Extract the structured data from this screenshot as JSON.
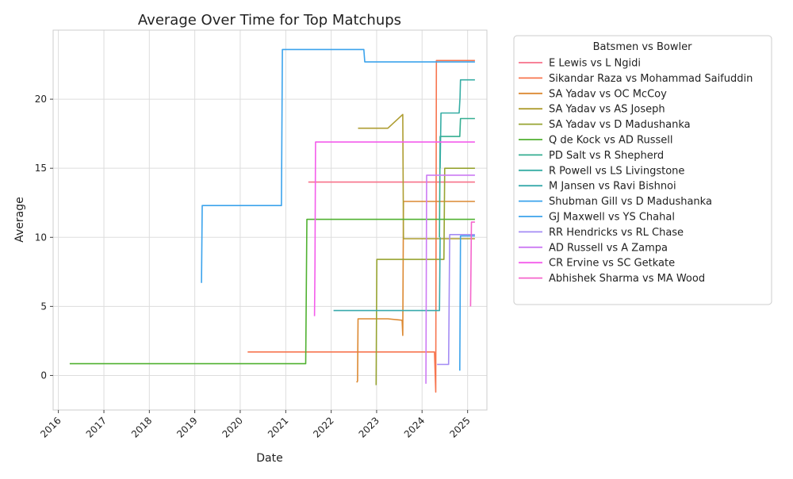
{
  "chart_data": {
    "type": "line",
    "title": "Average Over Time for Top Matchups",
    "xlabel": "Date",
    "ylabel": "Average",
    "xlim": [
      "2015-11-20",
      "2025-06-05"
    ],
    "ylim": [
      -2.5,
      25
    ],
    "x_ticks": [
      "2016",
      "2017",
      "2018",
      "2019",
      "2020",
      "2021",
      "2022",
      "2023",
      "2024",
      "2025"
    ],
    "y_ticks": [
      0,
      5,
      10,
      15,
      20
    ],
    "grid": true,
    "legend_title": "Batsmen vs Bowler",
    "legend_position": "outside-right",
    "series": [
      {
        "name": "E Lewis vs L Ngidi",
        "color": "#f77189",
        "x": [
          "2021-07-01",
          "2025-03-01"
        ],
        "y": [
          14.0,
          14.0
        ]
      },
      {
        "name": "Sikandar Raza vs Mohammad Saifuddin",
        "color": "#f7754f",
        "x": [
          "2020-03-01",
          "2024-04-10",
          "2024-04-20",
          "2024-04-25",
          "2025-03-01"
        ],
        "y": [
          1.7,
          1.7,
          -1.2,
          22.8,
          22.8
        ]
      },
      {
        "name": "SA Yadav vs OC McCoy",
        "color": "#dc8932",
        "x": [
          "2022-07-25",
          "2022-08-01",
          "2022-08-05",
          "2023-04-01",
          "2023-07-25",
          "2023-07-30",
          "2023-08-05",
          "2025-03-01"
        ],
        "y": [
          -0.5,
          -0.4,
          4.1,
          4.1,
          4.0,
          2.9,
          12.6,
          12.6
        ]
      },
      {
        "name": "SA Yadav vs AS Joseph",
        "color": "#ae9d31",
        "x": [
          "2022-08-05",
          "2023-04-01",
          "2023-07-30",
          "2023-08-05",
          "2025-03-01"
        ],
        "y": [
          17.9,
          17.9,
          18.9,
          9.9,
          9.9
        ]
      },
      {
        "name": "SA Yadav vs D Madushanka",
        "color": "#97a431",
        "x": [
          "2022-12-28",
          "2023-01-03",
          "2024-06-25",
          "2024-07-01",
          "2025-03-01"
        ],
        "y": [
          -0.7,
          8.4,
          8.4,
          15.0,
          15.0
        ]
      },
      {
        "name": "Q de Kock vs AD Russell",
        "color": "#50b131",
        "x": [
          "2016-04-01",
          "2021-06-10",
          "2021-06-20",
          "2025-03-01"
        ],
        "y": [
          0.85,
          0.85,
          11.3,
          11.3
        ]
      },
      {
        "name": "PD Salt vs R Shepherd",
        "color": "#34ae91",
        "x": [
          "2024-05-20",
          "2024-05-25",
          "2024-10-30",
          "2024-11-05",
          "2025-03-01"
        ],
        "y": [
          10.0,
          17.3,
          17.3,
          18.6,
          18.6
        ]
      },
      {
        "name": "R Powell vs LS Livingstone",
        "color": "#36ada4",
        "x": [
          "2024-05-25",
          "2024-06-01",
          "2024-10-25",
          "2024-11-01",
          "2024-11-05",
          "2025-03-01"
        ],
        "y": [
          15.0,
          19.0,
          19.0,
          20.1,
          21.4,
          21.4
        ]
      },
      {
        "name": "M Jansen vs Ravi Bishnoi",
        "color": "#38aaac",
        "x": [
          "2022-01-20",
          "2024-05-20",
          "2024-05-25"
        ],
        "y": [
          4.7,
          4.7,
          10.0
        ]
      },
      {
        "name": "Shubman Gill vs D Madushanka",
        "color": "#3ba3ec",
        "x": [
          "2024-10-30",
          "2024-11-05",
          "2025-03-01"
        ],
        "y": [
          0.35,
          10.1,
          10.1
        ]
      },
      {
        "name": "GJ Maxwell vs YS Chahal",
        "color": "#3ba3ec",
        "x": [
          "2019-02-24",
          "2019-03-02",
          "2020-11-27",
          "2020-12-05",
          "2022-09-20",
          "2022-09-28",
          "2025-03-01"
        ],
        "y": [
          6.7,
          12.3,
          12.3,
          23.6,
          23.6,
          22.7,
          22.7
        ]
      },
      {
        "name": "RR Hendricks vs RL Chase",
        "color": "#a48cf4",
        "x": [
          "2024-05-01",
          "2024-08-01",
          "2024-08-10",
          "2025-03-01"
        ],
        "y": [
          0.8,
          0.8,
          10.2,
          10.2
        ]
      },
      {
        "name": "AD Russell vs A Zampa",
        "color": "#cc7af4",
        "x": [
          "2024-02-01",
          "2024-02-07",
          "2025-03-01"
        ],
        "y": [
          -0.6,
          14.5,
          14.5
        ]
      },
      {
        "name": "CR Ervine vs SC Getkate",
        "color": "#f45deb",
        "x": [
          "2021-08-20",
          "2021-08-24",
          "2021-08-28",
          "2025-03-01"
        ],
        "y": [
          4.3,
          8.0,
          16.9,
          16.9
        ]
      },
      {
        "name": "Abhishek Sharma vs MA Wood",
        "color": "#f565cc",
        "x": [
          "2025-01-25",
          "2025-02-01",
          "2025-03-01"
        ],
        "y": [
          5.0,
          11.1,
          11.1
        ]
      }
    ]
  }
}
